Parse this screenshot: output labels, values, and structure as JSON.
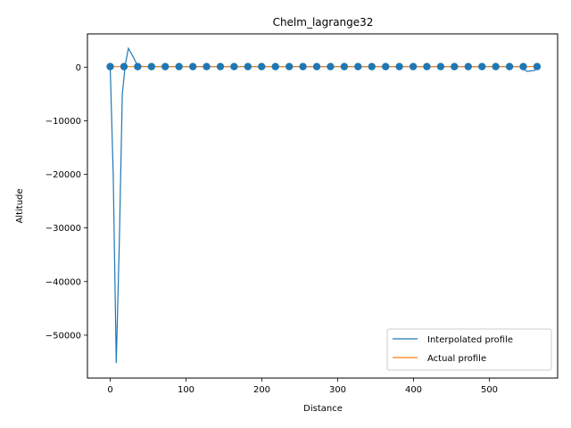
{
  "chart_data": {
    "type": "line",
    "title": "Chelm_lagrange32",
    "xlabel": "Distance",
    "ylabel": "Altitude",
    "xlim": [
      -30,
      590
    ],
    "ylim": [
      -58000,
      6200
    ],
    "xticks": [
      0,
      100,
      200,
      300,
      400,
      500
    ],
    "yticks": [
      -50000,
      -40000,
      -30000,
      -20000,
      -10000,
      0
    ],
    "ytick_labels": [
      "−50000",
      "−40000",
      "−30000",
      "−20000",
      "−10000",
      "0"
    ],
    "grid": false,
    "legend_position": "lower-right",
    "series": [
      {
        "name": "Interpolated profile",
        "color": "#1f77b4",
        "x": [
          0,
          4,
          8,
          12,
          16,
          20,
          24,
          30,
          36,
          40,
          50,
          100,
          200,
          300,
          400,
          500,
          540,
          550,
          560,
          563
        ],
        "y": [
          100,
          -20000,
          -55200,
          -33000,
          -5000,
          500,
          3500,
          2000,
          300,
          150,
          100,
          100,
          100,
          100,
          100,
          100,
          100,
          -800,
          -600,
          100
        ]
      },
      {
        "name": "Actual profile",
        "color": "#ff7f0e",
        "x": [
          0,
          563
        ],
        "y": [
          100,
          100
        ]
      }
    ],
    "markers": {
      "color": "#1f77b4",
      "x": [
        0,
        18.2,
        36.3,
        54.5,
        72.6,
        90.8,
        109.0,
        127.1,
        145.3,
        163.4,
        181.6,
        199.7,
        217.9,
        236.1,
        254.2,
        272.4,
        290.5,
        308.7,
        326.8,
        345.0,
        363.2,
        381.3,
        399.5,
        417.6,
        435.8,
        453.9,
        472.1,
        490.3,
        508.4,
        526.6,
        544.7,
        562.9
      ],
      "y": [
        100,
        100,
        100,
        100,
        100,
        100,
        100,
        100,
        100,
        100,
        100,
        100,
        100,
        100,
        100,
        100,
        100,
        100,
        100,
        100,
        100,
        100,
        100,
        100,
        100,
        100,
        100,
        100,
        100,
        100,
        100,
        100
      ]
    }
  }
}
